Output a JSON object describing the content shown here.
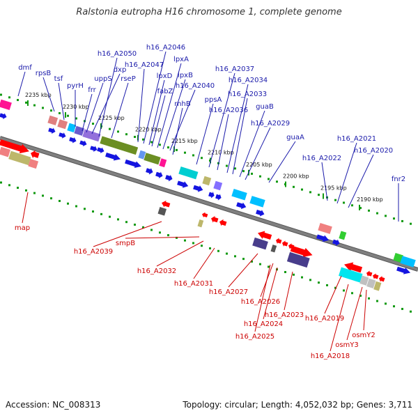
{
  "title": "Ralstonia eutropha H16 chromosome 1, complete genome",
  "footer": {
    "accession": "Accession: NC_008313",
    "topology": "Topology: circular; Length: 4,052,032 bp; Genes: 3,711"
  },
  "colors": {
    "forward_label": "#1a1aaa",
    "reverse_label": "#cc0000",
    "backbone": "#808080",
    "tick": "#119911"
  },
  "kbp_ticks": [
    "2235 kbp",
    "2230 kbp",
    "2225 kbp",
    "2220 kbp",
    "2215 kbp",
    "2210 kbp",
    "2205 kbp",
    "2200 kbp",
    "2195 kbp",
    "2190 kbp"
  ],
  "forward_labels": [
    "dmf",
    "rpsB",
    "tsf",
    "pyrH",
    "frr",
    "uppS",
    "dxp",
    "h16_A2050",
    "rseP",
    "h16_A2047",
    "h16_A2046",
    "lpxD",
    "fabZ",
    "lpxA",
    "lpxB",
    "h16_A2040",
    "rnhB",
    "ppsA",
    "h16_A2037",
    "h16_A2036",
    "h16_A2034",
    "h16_A2033",
    "guaB",
    "h16_A2029",
    "guaA",
    "h16_A2022",
    "h16_A2021",
    "h16_A2020",
    "fnr2"
  ],
  "reverse_labels": [
    "map",
    "h16_A2039",
    "smpB",
    "h16_A2032",
    "h16_A2031",
    "h16_A2027",
    "h16_A2026",
    "h16_A2024",
    "h16_A2025",
    "h16_A2023",
    "h16_A2019",
    "h16_A2018",
    "osmY3",
    "osmY2"
  ]
}
